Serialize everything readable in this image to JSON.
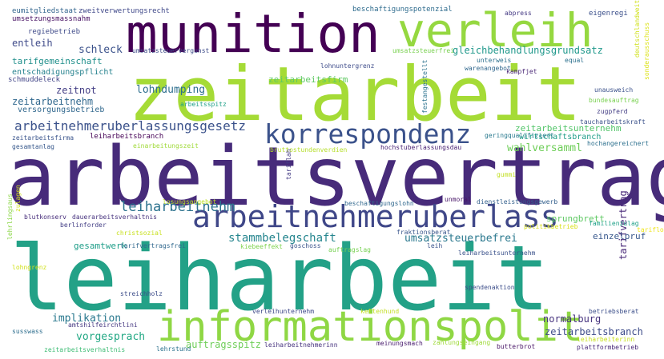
{
  "words": [
    {
      "text": "leiharbeit",
      "color": "#23a187"
    },
    {
      "text": "arbeitsvertrag",
      "color": "#472b7a"
    },
    {
      "text": "zeitarbeit",
      "color": "#a5db36"
    },
    {
      "text": "informationspolit",
      "color": "#8fd744"
    },
    {
      "text": "munition",
      "color": "#440154"
    },
    {
      "text": "verleih",
      "color": "#95d840"
    },
    {
      "text": "arbeitnehmeruberlass",
      "color": "#3f4788"
    },
    {
      "text": "korrespondenz",
      "color": "#3b528b"
    },
    {
      "text": "arbeitnehmeruberlassungsgesetz",
      "color": "#3b528b"
    },
    {
      "text": "leiharbeitnehm",
      "color": "#2c728e"
    },
    {
      "text": "stammbelegschaft",
      "color": "#25858e"
    },
    {
      "text": "umsatzsteuerbefrei",
      "color": "#2a788e"
    },
    {
      "text": "lohndumping",
      "color": "#2e6f8e"
    },
    {
      "text": "gleichbehandlungsgrundsatz",
      "color": "#1f988b"
    },
    {
      "text": "zeitarbeitsfirm",
      "color": "#5ec962"
    },
    {
      "text": "zeitarbeitsunternehm",
      "color": "#52c569"
    },
    {
      "text": "wirtschaftsbranch",
      "color": "#1f9e89"
    },
    {
      "text": "wahlversamml",
      "color": "#6ece58"
    },
    {
      "text": "normalburg",
      "color": "#46337e"
    },
    {
      "text": "zeitarbeitsbranch",
      "color": "#3e4c8a"
    },
    {
      "text": "vorgesprach",
      "color": "#22a884"
    },
    {
      "text": "auftragsspitz",
      "color": "#6ece58"
    },
    {
      "text": "implikation",
      "color": "#29788e"
    },
    {
      "text": "entleih",
      "color": "#3e4a89"
    },
    {
      "text": "schleck",
      "color": "#3b528b"
    },
    {
      "text": "zeitnot",
      "color": "#433e85"
    },
    {
      "text": "zeitarbeitnehm",
      "color": "#31688e"
    },
    {
      "text": "gesamtwerk",
      "color": "#1f9e89"
    },
    {
      "text": "tarifvertrag",
      "color": "#482878"
    },
    {
      "text": "sprungbrett",
      "color": "#5ec962"
    },
    {
      "text": "einzelpruf",
      "color": "#38588c"
    },
    {
      "text": "tarifgemeinschaft",
      "color": "#21908c"
    },
    {
      "text": "entschadigungspflicht",
      "color": "#26828e"
    },
    {
      "text": "versorgungsbetrieb",
      "color": "#31688e"
    },
    {
      "text": "schmuddeleck",
      "color": "#414487"
    },
    {
      "text": "regiebetrieb",
      "color": "#3e4a89"
    },
    {
      "text": "eumitgliedstaat",
      "color": "#32658e"
    },
    {
      "text": "zweitverwertungsrecht",
      "color": "#3f4889"
    },
    {
      "text": "umsetzungsmassnahm",
      "color": "#471063"
    },
    {
      "text": "beschaftigungspotenzial",
      "color": "#2f6c8e"
    },
    {
      "text": "abpress",
      "color": "#443983"
    },
    {
      "text": "eigenregi",
      "color": "#3c508b"
    },
    {
      "text": "zeitarbeitsfirma",
      "color": "#3a548c"
    },
    {
      "text": "gesamtanlag",
      "color": "#38598c"
    },
    {
      "text": "leiharbeitsbranch",
      "color": "#440154"
    },
    {
      "text": "lohnuntergrenz",
      "color": "#3e4c8a"
    },
    {
      "text": "umsatzsteuerfrei",
      "color": "#7ad151"
    },
    {
      "text": "umsatzsteuervergunst",
      "color": "#3e4c8a"
    },
    {
      "text": "warenangebot",
      "color": "#31688e"
    },
    {
      "text": "kampfjet",
      "color": "#482475"
    },
    {
      "text": "unterweis",
      "color": "#2d708e"
    },
    {
      "text": "equal",
      "color": "#2d718e"
    },
    {
      "text": "arbeitsspitz",
      "color": "#1fa088"
    },
    {
      "text": "geringqualifiziert",
      "color": "#29798e"
    },
    {
      "text": "festangestellt",
      "color": "#2c728e"
    },
    {
      "text": "unausweich",
      "color": "#3b518b"
    },
    {
      "text": "bundesauftrag",
      "color": "#7ad151"
    },
    {
      "text": "zugpferd",
      "color": "#433d84"
    },
    {
      "text": "taucharbeitskraft",
      "color": "#3b528b"
    },
    {
      "text": "hochangereichert",
      "color": "#2d708e"
    },
    {
      "text": "einarbeitungszeit",
      "color": "#a0da39"
    },
    {
      "text": "bruttostundenverdien",
      "color": "#b5de2b"
    },
    {
      "text": "hochstuberlassungsdau",
      "color": "#482173"
    },
    {
      "text": "tariflah",
      "color": "#443b84"
    },
    {
      "text": "gummi",
      "color": "#c2df23"
    },
    {
      "text": "unmoral",
      "color": "#481668"
    },
    {
      "text": "dienstleistungsgewerb",
      "color": "#34608d"
    },
    {
      "text": "beschaftigungslohn",
      "color": "#31688e"
    },
    {
      "text": "losungsangebot",
      "color": "#bddf26"
    },
    {
      "text": "zulagen",
      "color": "#d0e11c"
    },
    {
      "text": "blutkonserv",
      "color": "#472d7b"
    },
    {
      "text": "dauerarbeitsverhaltnis",
      "color": "#46327e"
    },
    {
      "text": "berlinforder",
      "color": "#433e85"
    },
    {
      "text": "fraktionsberat",
      "color": "#39568c"
    },
    {
      "text": "politikbetrieb",
      "color": "#d8e219"
    },
    {
      "text": "familienzulag",
      "color": "#1fa188"
    },
    {
      "text": "tariflohn",
      "color": "#efe51c"
    },
    {
      "text": "christsozial",
      "color": "#c8e020"
    },
    {
      "text": "kiebeeffekt",
      "color": "#7fd34e"
    },
    {
      "text": "goschoss",
      "color": "#3a538b"
    },
    {
      "text": "auftragslag",
      "color": "#77d153"
    },
    {
      "text": "leih",
      "color": "#3a548c"
    },
    {
      "text": "leiharbeitsunternehm",
      "color": "#3b528b"
    },
    {
      "text": "sonderausschuss",
      "color": "#dde318"
    },
    {
      "text": "tarifvertragsfrei",
      "color": "#31688e"
    },
    {
      "text": "lohngrenz",
      "color": "#d0e11c"
    },
    {
      "text": "streichholz",
      "color": "#3d4d8a"
    },
    {
      "text": "spendenaktion",
      "color": "#3d4e8a"
    },
    {
      "text": "amtshilfeirchtlini",
      "color": "#453781"
    },
    {
      "text": "verleihunternehm",
      "color": "#3e4989"
    },
    {
      "text": "kettenhund",
      "color": "#c2df23"
    },
    {
      "text": "betriebsberat",
      "color": "#3c4f8a"
    },
    {
      "text": "susswass",
      "color": "#2e6e8e"
    },
    {
      "text": "zeitarbeitsverhaltnis",
      "color": "#3dbc74"
    },
    {
      "text": "lehrstund",
      "color": "#2c728e"
    },
    {
      "text": "leiharbeitnehmerinn",
      "color": "#46327e"
    },
    {
      "text": "meinungsmach",
      "color": "#481c6e"
    },
    {
      "text": "zahlungseingang",
      "color": "#9fda3a"
    },
    {
      "text": "butterbrot",
      "color": "#481467"
    },
    {
      "text": "leiharbeiterinn",
      "color": "#c8e020"
    },
    {
      "text": "plattformbetrieb",
      "color": "#482878"
    },
    {
      "text": "deutschlandweit",
      "color": "#d0e11c"
    },
    {
      "text": "lehrlingsaus",
      "color": "#8bd646"
    }
  ]
}
